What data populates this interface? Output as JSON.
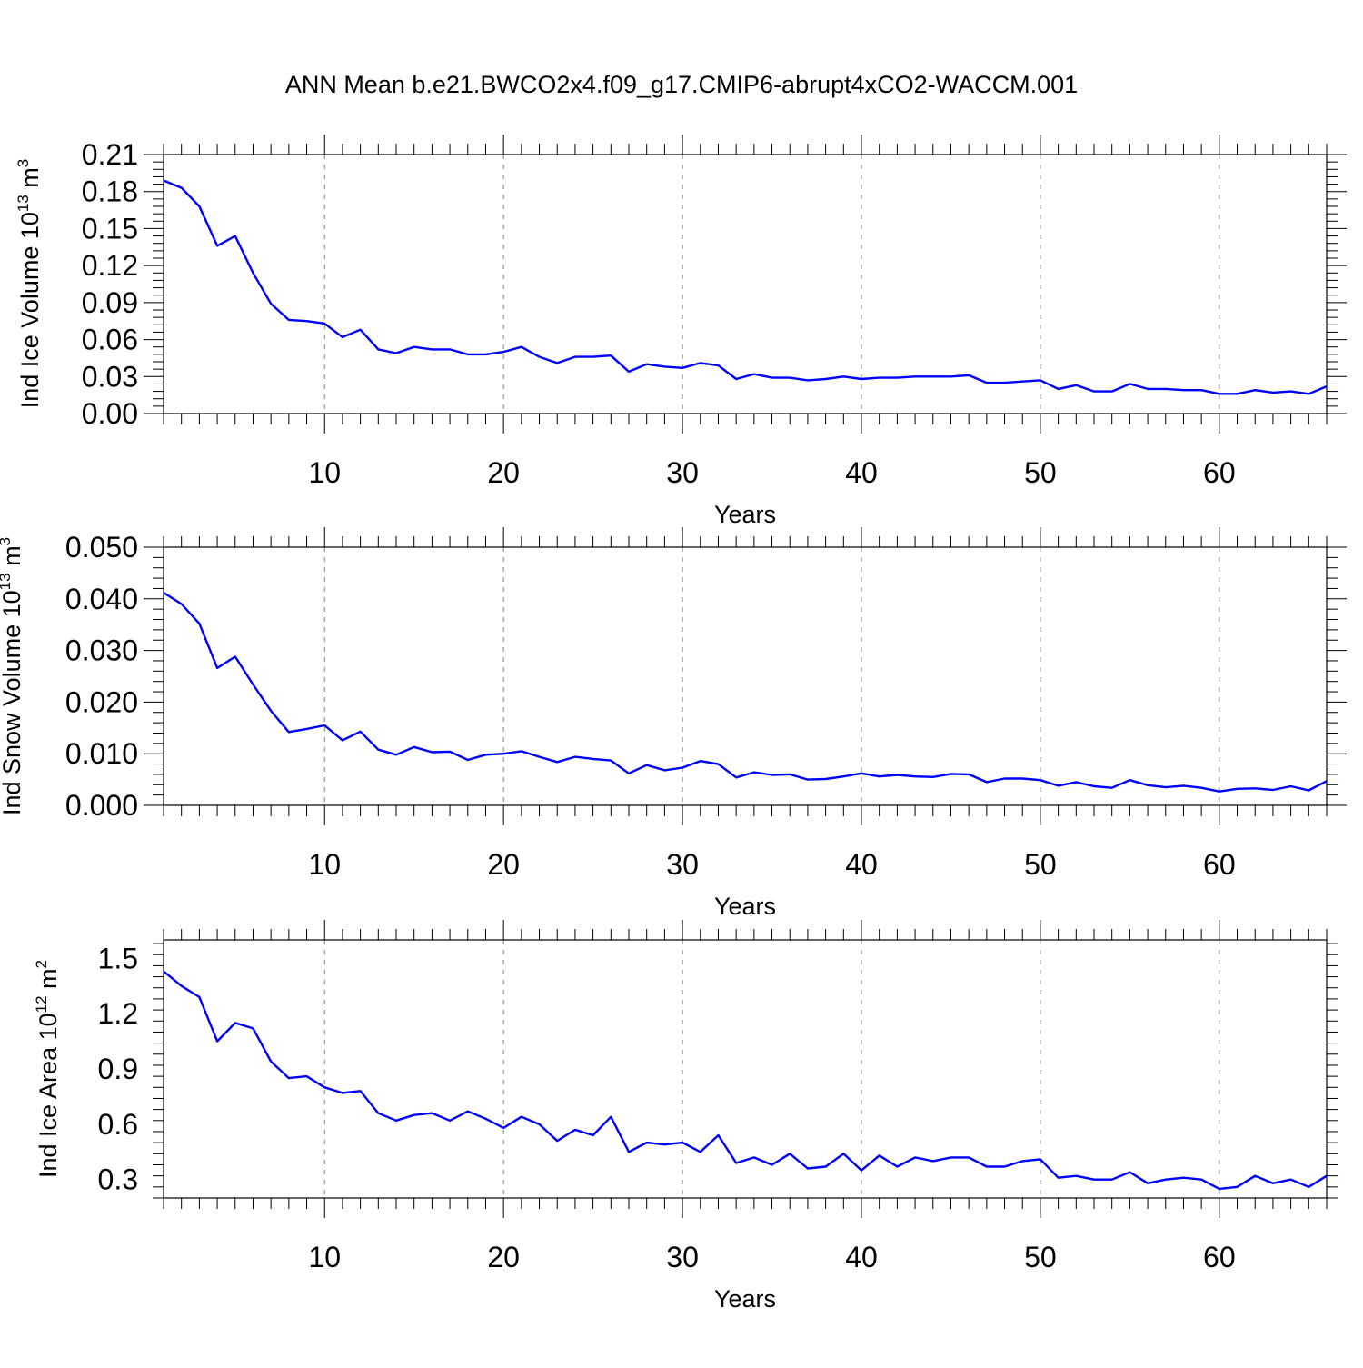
{
  "title": "ANN Mean b.e21.BWCO2x4.f09_g17.CMIP6-abrupt4xCO2-WACCM.001",
  "colors": {
    "line": "#0000ff",
    "axis": "#000000",
    "grid": "#808080"
  },
  "chart_data": [
    {
      "type": "line",
      "xlabel": "Years",
      "ylabel": {
        "text": "Ind Ice Volume 10",
        "sup": "13",
        "unit": " m",
        "unitsup": "3"
      },
      "xlim": [
        1,
        66
      ],
      "ylim": [
        0,
        0.21
      ],
      "xticks": [
        "10",
        "20",
        "30",
        "40",
        "50",
        "60"
      ],
      "yticks": [
        "0.00",
        "0.03",
        "0.06",
        "0.09",
        "0.12",
        "0.15",
        "0.18",
        "0.21"
      ],
      "grid": "vertical dashed at major x ticks",
      "x_start": 1,
      "values": [
        0.189,
        0.183,
        0.168,
        0.136,
        0.144,
        0.114,
        0.089,
        0.076,
        0.075,
        0.073,
        0.062,
        0.068,
        0.052,
        0.049,
        0.054,
        0.052,
        0.052,
        0.048,
        0.048,
        0.05,
        0.054,
        0.046,
        0.041,
        0.046,
        0.046,
        0.047,
        0.034,
        0.04,
        0.038,
        0.037,
        0.041,
        0.039,
        0.028,
        0.032,
        0.029,
        0.029,
        0.027,
        0.028,
        0.03,
        0.028,
        0.029,
        0.029,
        0.03,
        0.03,
        0.03,
        0.031,
        0.025,
        0.025,
        0.026,
        0.027,
        0.02,
        0.023,
        0.018,
        0.018,
        0.024,
        0.02,
        0.02,
        0.019,
        0.019,
        0.016,
        0.016,
        0.019,
        0.017,
        0.018,
        0.016,
        0.022
      ]
    },
    {
      "type": "line",
      "xlabel": "Years",
      "ylabel": {
        "text": "Ind Snow Volume 10",
        "sup": "13",
        "unit": " m",
        "unitsup": "3"
      },
      "xlim": [
        1,
        66
      ],
      "ylim": [
        0,
        0.05
      ],
      "xticks": [
        "10",
        "20",
        "30",
        "40",
        "50",
        "60"
      ],
      "yticks": [
        "0.000",
        "0.010",
        "0.020",
        "0.030",
        "0.040",
        "0.050"
      ],
      "grid": "vertical dashed at major x ticks",
      "x_start": 1,
      "values": [
        0.0412,
        0.039,
        0.0352,
        0.0266,
        0.0288,
        0.0234,
        0.0183,
        0.0142,
        0.0148,
        0.0155,
        0.0126,
        0.0143,
        0.0108,
        0.0098,
        0.0113,
        0.0103,
        0.0104,
        0.0088,
        0.0098,
        0.01,
        0.0105,
        0.0094,
        0.0084,
        0.0094,
        0.009,
        0.0087,
        0.0062,
        0.0078,
        0.0068,
        0.0073,
        0.0086,
        0.008,
        0.0054,
        0.0064,
        0.0059,
        0.006,
        0.005,
        0.0051,
        0.0056,
        0.0062,
        0.0056,
        0.0059,
        0.0056,
        0.0055,
        0.0061,
        0.006,
        0.0045,
        0.0052,
        0.0052,
        0.0049,
        0.0038,
        0.0045,
        0.0037,
        0.0034,
        0.0049,
        0.0039,
        0.0035,
        0.0038,
        0.0034,
        0.0027,
        0.0032,
        0.0033,
        0.003,
        0.0037,
        0.0029,
        0.0047
      ]
    },
    {
      "type": "line",
      "xlabel": "Years",
      "ylabel": {
        "text": "Ind Ice Area 10",
        "sup": "12",
        "unit": " m",
        "unitsup": "2"
      },
      "xlim": [
        1,
        66
      ],
      "ylim": [
        0.2,
        1.6
      ],
      "xticks": [
        "10",
        "20",
        "30",
        "40",
        "50",
        "60"
      ],
      "yticks": [
        "0.3",
        "0.6",
        "0.9",
        "1.2",
        "1.5"
      ],
      "grid": "vertical dashed at major x ticks",
      "x_start": 1,
      "values": [
        1.43,
        1.35,
        1.29,
        1.05,
        1.15,
        1.12,
        0.94,
        0.85,
        0.86,
        0.8,
        0.77,
        0.78,
        0.66,
        0.62,
        0.65,
        0.66,
        0.62,
        0.67,
        0.63,
        0.58,
        0.64,
        0.6,
        0.51,
        0.57,
        0.54,
        0.64,
        0.45,
        0.5,
        0.49,
        0.5,
        0.45,
        0.54,
        0.39,
        0.42,
        0.38,
        0.44,
        0.36,
        0.37,
        0.44,
        0.35,
        0.43,
        0.37,
        0.42,
        0.4,
        0.42,
        0.42,
        0.37,
        0.37,
        0.4,
        0.41,
        0.31,
        0.32,
        0.3,
        0.3,
        0.34,
        0.28,
        0.3,
        0.31,
        0.3,
        0.25,
        0.26,
        0.32,
        0.28,
        0.3,
        0.26,
        0.32
      ]
    }
  ]
}
